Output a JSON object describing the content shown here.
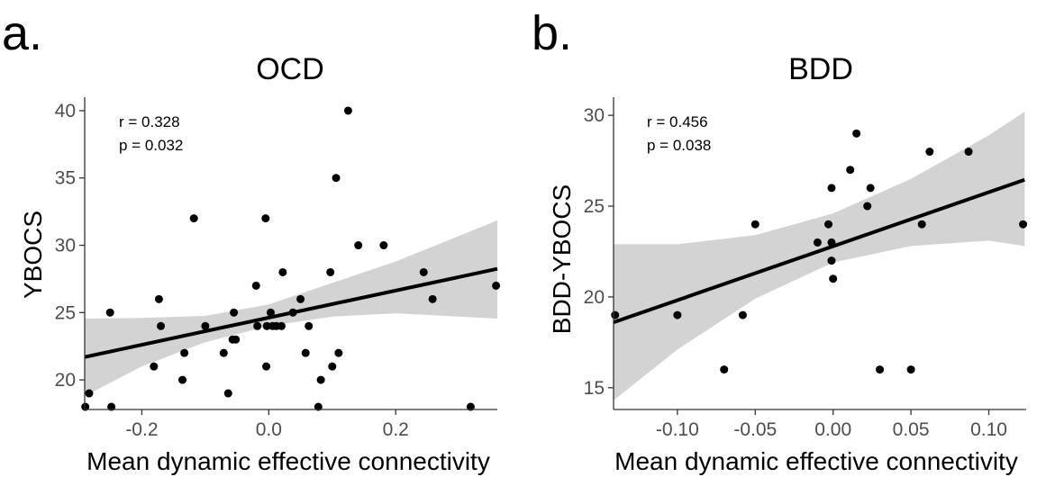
{
  "figure": {
    "colors": {
      "point": "#000000",
      "fit_line": "#000000",
      "confidence_band": "#d3d3d3",
      "axis": "#333333",
      "tick_text": "#4d4d4d"
    }
  },
  "chart_data": [
    {
      "type": "scatter",
      "panel_label": "a.",
      "title": "OCD",
      "xlabel": "Mean dynamic effective connectivity",
      "ylabel": "YBOCS",
      "xlim": [
        -0.29,
        0.36
      ],
      "ylim": [
        17.8,
        41.0
      ],
      "xticks": [
        -0.2,
        0.0,
        0.2
      ],
      "xtick_labels": [
        "-0.2",
        "0.0",
        "0.2"
      ],
      "yticks": [
        20,
        25,
        30,
        35,
        40
      ],
      "ytick_labels": [
        "20",
        "25",
        "30",
        "35",
        "40"
      ],
      "annotations": [
        "r = 0.328",
        "p = 0.032"
      ],
      "grid": false,
      "points": [
        {
          "x": -0.289,
          "y": 18
        },
        {
          "x": -0.283,
          "y": 19
        },
        {
          "x": -0.25,
          "y": 25
        },
        {
          "x": -0.248,
          "y": 18
        },
        {
          "x": -0.181,
          "y": 21
        },
        {
          "x": -0.173,
          "y": 26
        },
        {
          "x": -0.17,
          "y": 24
        },
        {
          "x": -0.136,
          "y": 20
        },
        {
          "x": -0.133,
          "y": 22
        },
        {
          "x": -0.118,
          "y": 32
        },
        {
          "x": -0.1,
          "y": 24
        },
        {
          "x": -0.071,
          "y": 22
        },
        {
          "x": -0.064,
          "y": 19
        },
        {
          "x": -0.057,
          "y": 23
        },
        {
          "x": -0.055,
          "y": 25
        },
        {
          "x": -0.052,
          "y": 23
        },
        {
          "x": -0.02,
          "y": 27
        },
        {
          "x": -0.018,
          "y": 24
        },
        {
          "x": -0.005,
          "y": 32
        },
        {
          "x": -0.004,
          "y": 21
        },
        {
          "x": -0.003,
          "y": 24
        },
        {
          "x": 0.003,
          "y": 25
        },
        {
          "x": 0.006,
          "y": 24
        },
        {
          "x": 0.012,
          "y": 24
        },
        {
          "x": 0.02,
          "y": 24
        },
        {
          "x": 0.022,
          "y": 28
        },
        {
          "x": 0.038,
          "y": 25
        },
        {
          "x": 0.05,
          "y": 26
        },
        {
          "x": 0.058,
          "y": 22
        },
        {
          "x": 0.063,
          "y": 24
        },
        {
          "x": 0.078,
          "y": 18
        },
        {
          "x": 0.082,
          "y": 20
        },
        {
          "x": 0.097,
          "y": 28
        },
        {
          "x": 0.1,
          "y": 21
        },
        {
          "x": 0.106,
          "y": 35
        },
        {
          "x": 0.11,
          "y": 22
        },
        {
          "x": 0.125,
          "y": 40
        },
        {
          "x": 0.141,
          "y": 30
        },
        {
          "x": 0.181,
          "y": 30
        },
        {
          "x": 0.244,
          "y": 28
        },
        {
          "x": 0.258,
          "y": 26
        },
        {
          "x": 0.318,
          "y": 18
        },
        {
          "x": 0.358,
          "y": 27
        }
      ],
      "fit_line": {
        "x": [
          -0.29,
          0.36
        ],
        "y": [
          21.7,
          28.25
        ]
      },
      "confidence_band": {
        "x": [
          -0.29,
          -0.2,
          -0.1,
          0.0,
          0.1,
          0.2,
          0.3,
          0.36
        ],
        "lower": [
          18.8,
          21.0,
          22.8,
          24.0,
          24.7,
          24.95,
          24.7,
          24.55
        ],
        "upper": [
          24.55,
          24.6,
          24.75,
          25.6,
          27.2,
          28.8,
          30.7,
          31.85
        ]
      }
    },
    {
      "type": "scatter",
      "panel_label": "b.",
      "title": "BDD",
      "xlabel": "Mean dynamic effective connectivity",
      "ylabel": "BDD-YBOCS",
      "xlim": [
        -0.141,
        0.124
      ],
      "ylim": [
        13.8,
        31.0
      ],
      "xticks": [
        -0.1,
        -0.05,
        0.0,
        0.05,
        0.1
      ],
      "xtick_labels": [
        "-0.10",
        "-0.05",
        "0.00",
        "0.05",
        "0.10"
      ],
      "yticks": [
        15,
        20,
        25,
        30
      ],
      "ytick_labels": [
        "15",
        "20",
        "25",
        "30"
      ],
      "annotations": [
        "r = 0.456",
        "p = 0.038"
      ],
      "grid": false,
      "points": [
        {
          "x": -0.14,
          "y": 19
        },
        {
          "x": -0.1,
          "y": 19
        },
        {
          "x": -0.07,
          "y": 16
        },
        {
          "x": -0.058,
          "y": 19
        },
        {
          "x": -0.05,
          "y": 24
        },
        {
          "x": -0.01,
          "y": 23
        },
        {
          "x": -0.003,
          "y": 24
        },
        {
          "x": -0.001,
          "y": 26
        },
        {
          "x": -0.001,
          "y": 23
        },
        {
          "x": -0.001,
          "y": 22
        },
        {
          "x": 0.0,
          "y": 21
        },
        {
          "x": 0.011,
          "y": 27
        },
        {
          "x": 0.015,
          "y": 29
        },
        {
          "x": 0.022,
          "y": 25
        },
        {
          "x": 0.024,
          "y": 26
        },
        {
          "x": 0.03,
          "y": 16
        },
        {
          "x": 0.05,
          "y": 16
        },
        {
          "x": 0.057,
          "y": 24
        },
        {
          "x": 0.062,
          "y": 28
        },
        {
          "x": 0.087,
          "y": 28
        },
        {
          "x": 0.122,
          "y": 24
        }
      ],
      "fit_line": {
        "x": [
          -0.141,
          0.123
        ],
        "y": [
          18.6,
          26.45
        ]
      },
      "confidence_band": {
        "x": [
          -0.141,
          -0.1,
          -0.05,
          0.0,
          0.05,
          0.1,
          0.123
        ],
        "lower": [
          14.3,
          17.1,
          19.9,
          21.9,
          22.8,
          23.1,
          22.8
        ],
        "upper": [
          22.9,
          22.9,
          23.4,
          24.6,
          26.5,
          28.9,
          30.2
        ]
      }
    }
  ]
}
